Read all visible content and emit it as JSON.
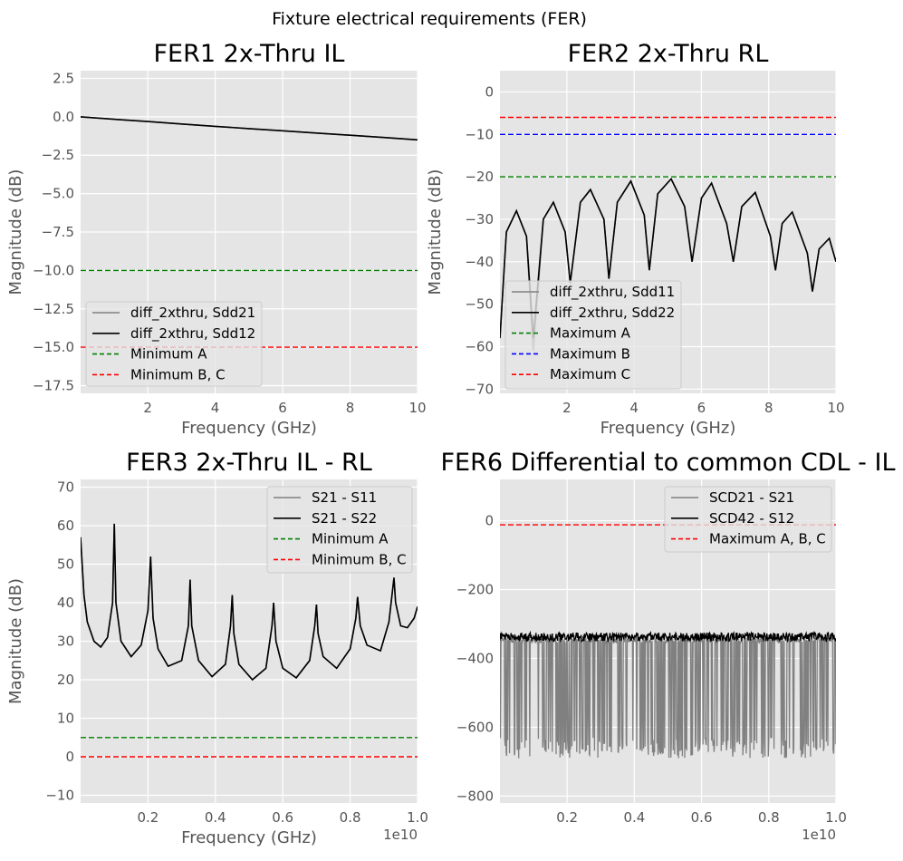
{
  "figure": {
    "suptitle": "Fixture electrical requirements (FER)"
  },
  "colors": {
    "bg": "#e5e5e5",
    "grid": "#ffffff",
    "black": "#000000",
    "gray": "#808080",
    "green": "#008000",
    "red": "#ff0000",
    "blue": "#0000ff"
  },
  "chart_data": [
    {
      "type": "line",
      "title": "FER1 2x-Thru IL",
      "xlabel": "Frequency (GHz)",
      "ylabel": "Magnitude (dB)",
      "xlim": [
        0.01,
        10
      ],
      "ylim": [
        -18,
        3
      ],
      "xticks": [
        2,
        4,
        6,
        8,
        10
      ],
      "xtick_labels": [
        "2",
        "4",
        "6",
        "8",
        "10"
      ],
      "yticks": [
        2.5,
        0,
        -2.5,
        -5,
        -7.5,
        -10,
        -12.5,
        -15,
        -17.5
      ],
      "ytick_labels": [
        "2.5",
        "0.0",
        "−2.5",
        "−5.0",
        "−7.5",
        "−10.0",
        "−12.5",
        "−15.0",
        "−17.5"
      ],
      "grid": true,
      "legend": "lower-left",
      "series": [
        {
          "name": "diff_2xthru, Sdd21",
          "color": "#808080",
          "style": "solid",
          "x": [
            0.01,
            1,
            2,
            3,
            4,
            5,
            6,
            7,
            8,
            9,
            10
          ],
          "y": [
            0,
            -0.16,
            -0.31,
            -0.47,
            -0.62,
            -0.77,
            -0.91,
            -1.06,
            -1.2,
            -1.35,
            -1.5
          ]
        },
        {
          "name": "diff_2xthru, Sdd12",
          "color": "#000000",
          "style": "solid",
          "x": [
            0.01,
            1,
            2,
            3,
            4,
            5,
            6,
            7,
            8,
            9,
            10
          ],
          "y": [
            0,
            -0.16,
            -0.31,
            -0.47,
            -0.62,
            -0.77,
            -0.91,
            -1.06,
            -1.2,
            -1.35,
            -1.5
          ]
        },
        {
          "name": "Minimum A",
          "color": "#008000",
          "style": "dashed",
          "x": [
            0.01,
            10
          ],
          "y": [
            -10,
            -10
          ]
        },
        {
          "name": "Minimum B, C",
          "color": "#ff0000",
          "style": "dashed",
          "x": [
            0.01,
            10
          ],
          "y": [
            -15,
            -15
          ]
        }
      ]
    },
    {
      "type": "line",
      "title": "FER2 2x-Thru RL",
      "xlabel": "Frequency (GHz)",
      "ylabel": "Magnitude (dB)",
      "xlim": [
        0.01,
        10
      ],
      "ylim": [
        -71,
        5
      ],
      "xticks": [
        2,
        4,
        6,
        8,
        10
      ],
      "xtick_labels": [
        "2",
        "4",
        "6",
        "8",
        "10"
      ],
      "yticks": [
        0,
        -10,
        -20,
        -30,
        -40,
        -50,
        -60,
        -70
      ],
      "ytick_labels": [
        "0",
        "−10",
        "−20",
        "−30",
        "−40",
        "−50",
        "−60",
        "−70"
      ],
      "grid": true,
      "legend": "lower-left",
      "series": [
        {
          "name": "diff_2xthru, Sdd11",
          "color": "#808080",
          "style": "solid",
          "x": [
            0.01,
            0.2,
            0.5,
            0.8,
            1.0,
            1.3,
            1.6,
            1.95,
            2.1,
            2.4,
            2.7,
            3.1,
            3.25,
            3.5,
            3.9,
            4.3,
            4.45,
            4.7,
            5.1,
            5.5,
            5.72,
            6.0,
            6.3,
            6.75,
            6.95,
            7.2,
            7.6,
            8.05,
            8.2,
            8.4,
            8.7,
            9.15,
            9.3,
            9.5,
            9.8,
            10
          ],
          "y": [
            -58,
            -33,
            -28,
            -34,
            -61,
            -30,
            -26,
            -33,
            -45,
            -26,
            -23,
            -30,
            -44,
            -26,
            -21,
            -29,
            -42,
            -24,
            -20.5,
            -27,
            -40,
            -25,
            -21.5,
            -31,
            -40,
            -27,
            -23.7,
            -34,
            -42,
            -31,
            -28.3,
            -38,
            -47,
            -37,
            -34.5,
            -40
          ]
        },
        {
          "name": "diff_2xthru, Sdd22",
          "color": "#000000",
          "style": "solid",
          "x": [
            0.01,
            0.2,
            0.5,
            0.8,
            1.0,
            1.3,
            1.6,
            1.95,
            2.1,
            2.4,
            2.7,
            3.1,
            3.25,
            3.5,
            3.9,
            4.3,
            4.45,
            4.7,
            5.1,
            5.5,
            5.72,
            6.0,
            6.3,
            6.75,
            6.95,
            7.2,
            7.6,
            8.05,
            8.2,
            8.4,
            8.7,
            9.15,
            9.3,
            9.5,
            9.8,
            10
          ],
          "y": [
            -58,
            -33,
            -28,
            -34,
            -58,
            -30,
            -26,
            -33,
            -45,
            -26,
            -23,
            -30,
            -44,
            -26,
            -21,
            -29,
            -42,
            -24,
            -20.5,
            -27,
            -40,
            -25,
            -21.5,
            -31,
            -40,
            -27,
            -23.7,
            -34,
            -42,
            -31,
            -28.3,
            -38,
            -47,
            -37,
            -34.5,
            -40
          ]
        },
        {
          "name": "Maximum A",
          "color": "#008000",
          "style": "dashed",
          "x": [
            0.01,
            10
          ],
          "y": [
            -20,
            -20
          ]
        },
        {
          "name": "Maximum B",
          "color": "#0000ff",
          "style": "dashed",
          "x": [
            0.01,
            10
          ],
          "y": [
            -10,
            -10
          ]
        },
        {
          "name": "Maximum C",
          "color": "#ff0000",
          "style": "dashed",
          "x": [
            0.01,
            10
          ],
          "y": [
            -6,
            -6
          ]
        }
      ]
    },
    {
      "type": "line",
      "title": "FER3 2x-Thru IL - RL",
      "xlabel": "Frequency (GHz)",
      "ylabel": "Magnitude (dB)",
      "offset_label": "1e10",
      "xlim": [
        0.0001,
        1.0
      ],
      "ylim": [
        -12,
        72
      ],
      "xticks": [
        0.2,
        0.4,
        0.6,
        0.8,
        1.0
      ],
      "xtick_labels": [
        "0.2",
        "0.4",
        "0.6",
        "0.8",
        "1.0"
      ],
      "yticks": [
        70,
        60,
        50,
        40,
        30,
        20,
        10,
        0,
        -10
      ],
      "ytick_labels": [
        "70",
        "60",
        "50",
        "40",
        "30",
        "20",
        "10",
        "0",
        "−10"
      ],
      "grid": true,
      "legend": "upper-right",
      "series": [
        {
          "name": "S21 - S11",
          "color": "#808080",
          "style": "solid",
          "x": [
            0.0001,
            0.01,
            0.02,
            0.04,
            0.06,
            0.08,
            0.095,
            0.1,
            0.105,
            0.12,
            0.15,
            0.18,
            0.2,
            0.208,
            0.215,
            0.23,
            0.26,
            0.3,
            0.32,
            0.325,
            0.33,
            0.35,
            0.39,
            0.43,
            0.445,
            0.45,
            0.455,
            0.47,
            0.51,
            0.55,
            0.568,
            0.573,
            0.58,
            0.6,
            0.64,
            0.68,
            0.695,
            0.7,
            0.705,
            0.72,
            0.76,
            0.8,
            0.817,
            0.822,
            0.83,
            0.85,
            0.89,
            0.915,
            0.93,
            0.935,
            0.95,
            0.97,
            0.99,
            1.0
          ],
          "y": [
            57,
            42,
            35,
            30,
            28.5,
            31,
            40,
            60.5,
            40,
            30,
            26,
            29,
            38,
            52,
            36,
            28,
            23.5,
            25,
            34,
            46,
            34,
            25,
            20.8,
            24,
            34,
            42,
            32,
            24,
            20,
            23,
            34,
            40,
            30,
            23,
            20.5,
            25,
            34,
            39.5,
            32,
            26,
            23,
            28,
            36,
            41.5,
            34,
            29,
            27.5,
            35,
            46.5,
            40,
            34,
            33.5,
            36,
            39
          ]
        },
        {
          "name": "S21 - S22",
          "color": "#000000",
          "style": "solid",
          "x": [
            0.0001,
            0.01,
            0.02,
            0.04,
            0.06,
            0.08,
            0.095,
            0.1,
            0.105,
            0.12,
            0.15,
            0.18,
            0.2,
            0.208,
            0.215,
            0.23,
            0.26,
            0.3,
            0.32,
            0.325,
            0.33,
            0.35,
            0.39,
            0.43,
            0.445,
            0.45,
            0.455,
            0.47,
            0.51,
            0.55,
            0.568,
            0.573,
            0.58,
            0.6,
            0.64,
            0.68,
            0.695,
            0.7,
            0.705,
            0.72,
            0.76,
            0.8,
            0.817,
            0.822,
            0.83,
            0.85,
            0.89,
            0.915,
            0.93,
            0.935,
            0.95,
            0.97,
            0.99,
            1.0
          ],
          "y": [
            57,
            42,
            35,
            30,
            28.5,
            31,
            40,
            60.5,
            40,
            30,
            26,
            29,
            38,
            52,
            36,
            28,
            23.5,
            25,
            34,
            46,
            34,
            25,
            20.8,
            24,
            34,
            42,
            32,
            24,
            20,
            23,
            34,
            40,
            30,
            23,
            20.5,
            25,
            34,
            39.5,
            32,
            26,
            23,
            28,
            36,
            41.5,
            34,
            29,
            27.5,
            35,
            46.5,
            40,
            34,
            33.5,
            36,
            39
          ]
        },
        {
          "name": "Minimum A",
          "color": "#008000",
          "style": "dashed",
          "x": [
            0.0001,
            1.0
          ],
          "y": [
            5,
            5
          ]
        },
        {
          "name": "Minimum B, C",
          "color": "#ff0000",
          "style": "dashed",
          "x": [
            0.0001,
            1.0
          ],
          "y": [
            0,
            0
          ]
        }
      ]
    },
    {
      "type": "line",
      "title": "FER6 Differential to common CDL - IL",
      "xlabel": "",
      "ylabel": "",
      "offset_label": "1e10",
      "xlim": [
        0.0001,
        1.0
      ],
      "ylim": [
        -820,
        120
      ],
      "xticks": [
        0.2,
        0.4,
        0.6,
        0.8,
        1.0
      ],
      "xtick_labels": [
        "0.2",
        "0.4",
        "0.6",
        "0.8",
        "1.0"
      ],
      "yticks": [
        0,
        -200,
        -400,
        -600,
        -800
      ],
      "ytick_labels": [
        "0",
        "−200",
        "−400",
        "−600",
        "−800"
      ],
      "grid": true,
      "legend": "upper-right",
      "series": [
        {
          "name": "SCD21 - S21",
          "color": "#808080",
          "style": "noise",
          "x": [
            0.0001,
            1.0
          ],
          "y_band": [
            -340,
            -690
          ],
          "y": [
            -340,
            -340
          ]
        },
        {
          "name": "SCD42 - S12",
          "color": "#000000",
          "style": "noise",
          "x": [
            0.0001,
            1.0
          ],
          "y_band": [
            -325,
            -350
          ],
          "y": [
            -338,
            -338
          ]
        },
        {
          "name": "Maximum A, B, C",
          "color": "#ff0000",
          "style": "dashed",
          "x": [
            0.0001,
            1.0
          ],
          "y": [
            -12,
            -12
          ]
        }
      ]
    }
  ]
}
